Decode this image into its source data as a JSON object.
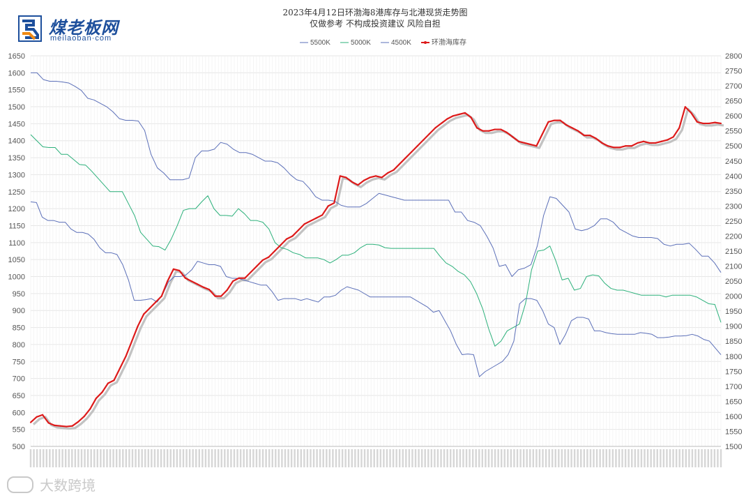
{
  "header": {
    "logo_cn": "煤老板网",
    "logo_url": "meilaoban·com",
    "watermark": "大数跨境"
  },
  "chart_data": {
    "type": "line",
    "title": "2023年4月12日环渤海8港库存与北港现货走势图",
    "subtitle": "仅做参考 不构成投资建议 风险自担",
    "y_left": {
      "min": 500,
      "max": 1650,
      "ticks": [
        500,
        550,
        600,
        650,
        700,
        750,
        800,
        850,
        900,
        950,
        1000,
        1050,
        1100,
        1150,
        1200,
        1250,
        1300,
        1350,
        1400,
        1450,
        1500,
        1550,
        1600,
        1650
      ]
    },
    "y_right": {
      "min": 1500,
      "max": 2800,
      "ticks": [
        1500,
        1550,
        1600,
        1650,
        1700,
        1750,
        1800,
        1850,
        1900,
        1950,
        2000,
        2050,
        2100,
        2150,
        2200,
        2250,
        2300,
        2350,
        2400,
        2450,
        2500,
        2550,
        2600,
        2650,
        2700,
        2750,
        2800
      ]
    },
    "x_points": 218,
    "grid": true,
    "legend_position": "top-center",
    "series": [
      {
        "name": "5500K",
        "axis": "left",
        "color": "#5b6fb8",
        "values": [
          1600,
          1600,
          1580,
          1575,
          1575,
          1573,
          1570,
          1560,
          1548,
          1525,
          1520,
          1510,
          1500,
          1485,
          1465,
          1460,
          1460,
          1458,
          1430,
          1360,
          1320,
          1305,
          1285,
          1285,
          1285,
          1290,
          1350,
          1370,
          1370,
          1375,
          1395,
          1390,
          1375,
          1365,
          1365,
          1360,
          1350,
          1340,
          1340,
          1335,
          1320,
          1300,
          1285,
          1280,
          1260,
          1235,
          1225,
          1225,
          1222,
          1210,
          1205,
          1205,
          1205,
          1215,
          1230,
          1245,
          1240,
          1235,
          1230,
          1225,
          1225,
          1225,
          1225,
          1225,
          1225,
          1225,
          1225,
          1190,
          1190,
          1165,
          1160,
          1150,
          1120,
          1085,
          1030,
          1035,
          1000,
          1020,
          1025,
          1035,
          1090,
          1180,
          1235,
          1230,
          1210,
          1190,
          1140,
          1135,
          1140,
          1150,
          1170,
          1170,
          1160,
          1140,
          1130,
          1120,
          1115,
          1115,
          1115,
          1112,
          1095,
          1090,
          1095,
          1095,
          1098,
          1080,
          1060,
          1060,
          1040,
          1012
        ]
      },
      {
        "name": "5000K",
        "axis": "left",
        "color": "#2bb07a",
        "values": [
          1418,
          1400,
          1382,
          1380,
          1380,
          1360,
          1360,
          1345,
          1330,
          1328,
          1310,
          1290,
          1270,
          1250,
          1250,
          1250,
          1215,
          1180,
          1130,
          1110,
          1090,
          1088,
          1078,
          1110,
          1150,
          1195,
          1200,
          1200,
          1220,
          1238,
          1200,
          1180,
          1180,
          1178,
          1200,
          1185,
          1165,
          1165,
          1160,
          1140,
          1100,
          1085,
          1080,
          1070,
          1065,
          1055,
          1055,
          1055,
          1050,
          1040,
          1050,
          1063,
          1063,
          1070,
          1085,
          1095,
          1095,
          1093,
          1085,
          1083,
          1083,
          1083,
          1083,
          1083,
          1083,
          1083,
          1083,
          1060,
          1040,
          1030,
          1015,
          1005,
          985,
          950,
          905,
          845,
          795,
          810,
          840,
          850,
          860,
          920,
          1020,
          1075,
          1078,
          1090,
          1045,
          990,
          995,
          960,
          965,
          1000,
          1005,
          1002,
          980,
          965,
          960,
          960,
          955,
          950,
          945,
          945,
          945,
          945,
          940,
          945,
          945,
          945,
          945,
          940,
          930,
          920,
          918,
          865
        ]
      },
      {
        "name": "4500K",
        "axis": "left",
        "color": "#5b6fb8",
        "values": [
          1220,
          1218,
          1175,
          1165,
          1165,
          1160,
          1160,
          1140,
          1130,
          1130,
          1125,
          1110,
          1085,
          1070,
          1070,
          1065,
          1035,
          990,
          930,
          930,
          932,
          935,
          925,
          950,
          985,
          1000,
          1000,
          1005,
          1020,
          1045,
          1040,
          1035,
          1035,
          1030,
          1000,
          995,
          995,
          990,
          985,
          980,
          975,
          975,
          955,
          930,
          935,
          935,
          935,
          930,
          935,
          930,
          925,
          940,
          940,
          945,
          960,
          970,
          965,
          960,
          950,
          940,
          940,
          940,
          940,
          940,
          940,
          940,
          940,
          930,
          920,
          910,
          895,
          900,
          870,
          840,
          800,
          770,
          772,
          770,
          705,
          720,
          730,
          740,
          750,
          770,
          810,
          920,
          935,
          935,
          930,
          900,
          860,
          850,
          800,
          830,
          870,
          880,
          880,
          875,
          840,
          840,
          835,
          832,
          830,
          830,
          830,
          830,
          835,
          833,
          830,
          820,
          820,
          822,
          825,
          825,
          826,
          830,
          825,
          815,
          810,
          790,
          770
        ]
      },
      {
        "name": "环渤海库存",
        "axis": "right",
        "color": "#dd1a1a",
        "values": [
          1580,
          1598,
          1605,
          1578,
          1570,
          1568,
          1566,
          1568,
          1582,
          1600,
          1625,
          1660,
          1680,
          1710,
          1720,
          1760,
          1800,
          1850,
          1900,
          1940,
          1960,
          1980,
          2000,
          2050,
          2090,
          2085,
          2060,
          2050,
          2040,
          2030,
          2022,
          2000,
          2000,
          2020,
          2050,
          2060,
          2060,
          2080,
          2100,
          2120,
          2130,
          2150,
          2170,
          2190,
          2200,
          2220,
          2240,
          2250,
          2260,
          2270,
          2300,
          2310,
          2400,
          2395,
          2380,
          2370,
          2385,
          2395,
          2400,
          2395,
          2410,
          2420,
          2440,
          2460,
          2480,
          2500,
          2520,
          2540,
          2560,
          2575,
          2590,
          2600,
          2605,
          2610,
          2595,
          2560,
          2550,
          2550,
          2555,
          2555,
          2545,
          2530,
          2515,
          2510,
          2505,
          2500,
          2540,
          2580,
          2585,
          2585,
          2570,
          2560,
          2550,
          2535,
          2535,
          2525,
          2510,
          2500,
          2495,
          2495,
          2500,
          2500,
          2510,
          2515,
          2510,
          2510,
          2515,
          2520,
          2530,
          2560,
          2630,
          2610,
          2580,
          2575,
          2575,
          2578,
          2575
        ]
      }
    ]
  }
}
